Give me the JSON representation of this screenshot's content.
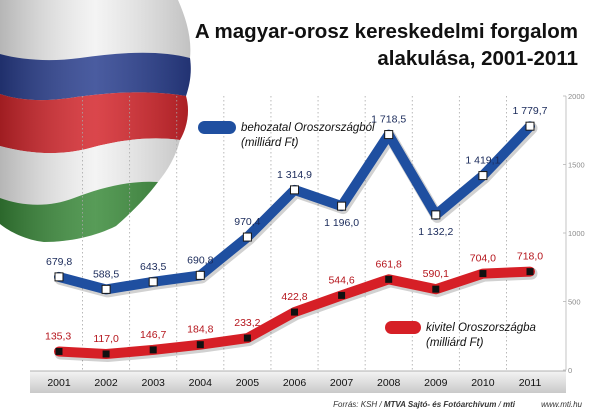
{
  "header": {
    "title_line1": "A magyar-orosz kereskedelmi forgalom",
    "title_line2": "alakulása, 2001-2011"
  },
  "legend": {
    "import_line1": "behozatal Oroszországból",
    "import_line2": "(milliárd Ft)",
    "export_line1": "kivitel Oroszországba",
    "export_line2": "(milliárd Ft)"
  },
  "footer": {
    "source_prefix": "Forrás: KSH / ",
    "source_agency": "MTVA Sajtó- és Fotóarchívum",
    "source_sep": " / ",
    "mti_logo": "mti",
    "site": "www.mti.hu"
  },
  "colors": {
    "import": "#1f4fa0",
    "export": "#d61f26",
    "flag_white": "#f2f2f2",
    "flag_blue": "#2a3f8f",
    "flag_red": "#d4262c",
    "flag_green": "#3a8a3a"
  },
  "chart_data": {
    "type": "line",
    "title": "A magyar-orosz kereskedelmi forgalom alakulása, 2001-2011",
    "categories": [
      "2001",
      "2002",
      "2003",
      "2004",
      "2005",
      "2006",
      "2007",
      "2008",
      "2009",
      "2010",
      "2011"
    ],
    "series": [
      {
        "name": "behozatal Oroszországból (milliárd Ft)",
        "values": [
          679.8,
          588.5,
          643.5,
          690.8,
          970.4,
          1314.9,
          1196.0,
          1718.5,
          1132.2,
          1419.1,
          1779.7
        ],
        "labels": [
          "679,8",
          "588,5",
          "643,5",
          "690,8",
          "970,4",
          "1 314,9",
          "1 196,0",
          "1 718,5",
          "1 132,2",
          "1 419,1",
          "1 779,7"
        ],
        "color": "#1f4fa0"
      },
      {
        "name": "kivitel Oroszországba (milliárd Ft)",
        "values": [
          135.3,
          117.0,
          146.7,
          184.8,
          233.2,
          422.8,
          544.6,
          661.8,
          590.1,
          704.0,
          718.0
        ],
        "labels": [
          "135,3",
          "117,0",
          "146,7",
          "184,8",
          "233,2",
          "422,8",
          "544,6",
          "661,8",
          "590,1",
          "704,0",
          "718,0"
        ],
        "color": "#d61f26"
      }
    ],
    "ylim": [
      0,
      2000
    ],
    "yticks": [
      "0",
      "500",
      "1000",
      "1500",
      "2000"
    ],
    "xlabel": "",
    "ylabel": "",
    "grid": "vertical dotted",
    "legend": "inline"
  }
}
